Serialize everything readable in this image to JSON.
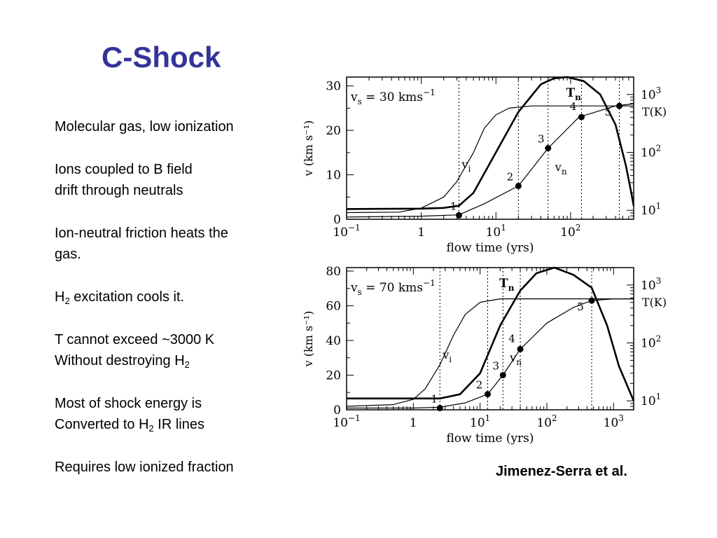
{
  "slide": {
    "title": "C-Shock",
    "bullets": [
      {
        "lines": [
          [
            "Molecular gas, low ionization"
          ]
        ]
      },
      {
        "lines": [
          [
            "Ions coupled to B field"
          ],
          [
            "drift through neutrals"
          ]
        ]
      },
      {
        "lines": [
          [
            "Ion-neutral friction heats the"
          ],
          [
            "gas."
          ]
        ]
      },
      {
        "lines": [
          [
            "H",
            {
              "sub": "2"
            },
            " excitation cools it."
          ]
        ]
      },
      {
        "lines": [
          [
            "T cannot exceed ~3000 K"
          ],
          [
            "Without destroying H",
            {
              "sub": "2"
            }
          ]
        ]
      },
      {
        "lines": [
          [
            "Most of shock energy is"
          ],
          [
            "Converted to H",
            {
              "sub": "2"
            },
            " IR lines"
          ]
        ]
      },
      {
        "lines": [
          [
            "Requires low ionized fraction"
          ]
        ]
      }
    ],
    "credit": "Jimenez-Serra et al."
  },
  "chart_data": [
    {
      "type": "line",
      "annotation": "v_s = 30 km s^-1",
      "xlabel": "flow time (yrs)",
      "ylabel": "v (km s^-1)",
      "right_label": "T(K)",
      "x_scale": "log",
      "xlim": [
        0.1,
        700
      ],
      "ylim": [
        0,
        32
      ],
      "xticks": [
        {
          "v": 0.1,
          "base": "10",
          "exp": "−1"
        },
        {
          "v": 1,
          "base": "1",
          "exp": ""
        },
        {
          "v": 10,
          "base": "10",
          "exp": "1"
        },
        {
          "v": 100,
          "base": "10",
          "exp": "2"
        }
      ],
      "yticks": [
        0,
        10,
        20,
        30
      ],
      "right_scale": "log",
      "right_lim": [
        7,
        2000
      ],
      "right_ticks": [
        {
          "v": 10,
          "base": "10",
          "exp": "1"
        },
        {
          "v": 100,
          "base": "10",
          "exp": "2"
        },
        {
          "v": 1000,
          "base": "10",
          "exp": "3"
        }
      ],
      "series": [
        {
          "name": "v_i",
          "axis": "left",
          "points": [
            [
              0.1,
              1.5
            ],
            [
              0.5,
              1.6
            ],
            [
              1,
              2.5
            ],
            [
              2,
              5
            ],
            [
              3,
              8.5
            ],
            [
              5,
              15
            ],
            [
              7,
              20.5
            ],
            [
              10,
              23.5
            ],
            [
              15,
              25
            ],
            [
              30,
              25.5
            ],
            [
              100,
              25.5
            ],
            [
              700,
              25.5
            ]
          ]
        },
        {
          "name": "v_n",
          "axis": "left",
          "points": [
            [
              0.1,
              0.5
            ],
            [
              1,
              0.7
            ],
            [
              3.2,
              1
            ],
            [
              7,
              3.5
            ],
            [
              20,
              7.5
            ],
            [
              50,
              16
            ],
            [
              130,
              23
            ],
            [
              400,
              25.5
            ],
            [
              700,
              26
            ]
          ]
        },
        {
          "name": "T_n",
          "axis": "right",
          "points": [
            [
              0.1,
              10.5
            ],
            [
              1,
              10.7
            ],
            [
              2,
              11
            ],
            [
              3.2,
              12
            ],
            [
              5,
              20
            ],
            [
              10,
              100
            ],
            [
              20,
              500
            ],
            [
              40,
              1500
            ],
            [
              60,
              1900
            ],
            [
              90,
              2000
            ],
            [
              150,
              1700
            ],
            [
              250,
              1000
            ],
            [
              400,
              300
            ],
            [
              550,
              60
            ],
            [
              650,
              20
            ],
            [
              700,
              12
            ]
          ]
        }
      ],
      "markers": [
        {
          "label": "1",
          "x": 3.2,
          "y": 0.9
        },
        {
          "label": "2",
          "x": 20,
          "y": 7.5
        },
        {
          "label": "3",
          "x": 50,
          "y": 16
        },
        {
          "label": "4",
          "x": 140,
          "y": 23
        },
        {
          "label": "5",
          "x": 450,
          "y": 25.5
        }
      ],
      "vlines": [
        3.2,
        20,
        50,
        140,
        450
      ]
    },
    {
      "type": "line",
      "annotation": "v_s = 70 km s^-1",
      "xlabel": "flow time (yrs)",
      "ylabel": "v (km s^-1)",
      "right_label": "T(K)",
      "x_scale": "log",
      "xlim": [
        0.1,
        2000
      ],
      "ylim": [
        0,
        82
      ],
      "xticks": [
        {
          "v": 0.1,
          "base": "10",
          "exp": "−1"
        },
        {
          "v": 1,
          "base": "1",
          "exp": ""
        },
        {
          "v": 10,
          "base": "10",
          "exp": "1"
        },
        {
          "v": 100,
          "base": "10",
          "exp": "2"
        },
        {
          "v": 1000,
          "base": "10",
          "exp": "3"
        }
      ],
      "yticks": [
        0,
        20,
        40,
        60,
        80
      ],
      "right_scale": "log",
      "right_lim": [
        7,
        2000
      ],
      "right_ticks": [
        {
          "v": 10,
          "base": "10",
          "exp": "1"
        },
        {
          "v": 100,
          "base": "10",
          "exp": "2"
        },
        {
          "v": 1000,
          "base": "10",
          "exp": "3"
        }
      ],
      "series": [
        {
          "name": "v_i",
          "axis": "left",
          "points": [
            [
              0.1,
              2
            ],
            [
              0.5,
              3
            ],
            [
              1,
              6
            ],
            [
              1.5,
              12
            ],
            [
              2.5,
              26
            ],
            [
              4,
              43
            ],
            [
              6,
              55
            ],
            [
              10,
              62
            ],
            [
              20,
              64
            ],
            [
              100,
              64
            ],
            [
              2000,
              64
            ]
          ]
        },
        {
          "name": "v_n",
          "axis": "left",
          "points": [
            [
              0.1,
              1
            ],
            [
              1,
              1
            ],
            [
              2.5,
              1.5
            ],
            [
              6,
              4
            ],
            [
              13,
              9
            ],
            [
              22,
              20
            ],
            [
              40,
              35
            ],
            [
              100,
              50
            ],
            [
              250,
              59
            ],
            [
              470,
              63
            ],
            [
              1000,
              64
            ],
            [
              2000,
              64
            ]
          ]
        },
        {
          "name": "T_n",
          "axis": "right",
          "points": [
            [
              0.1,
              11
            ],
            [
              1,
              11
            ],
            [
              2.5,
              11
            ],
            [
              5,
              13
            ],
            [
              10,
              30
            ],
            [
              20,
              200
            ],
            [
              40,
              800
            ],
            [
              70,
              1600
            ],
            [
              130,
              2000
            ],
            [
              250,
              1500
            ],
            [
              470,
              900
            ],
            [
              800,
              200
            ],
            [
              1200,
              40
            ],
            [
              2000,
              10
            ]
          ]
        }
      ],
      "markers": [
        {
          "label": "1",
          "x": 2.5,
          "y": 1
        },
        {
          "label": "2",
          "x": 13,
          "y": 9
        },
        {
          "label": "3",
          "x": 22,
          "y": 20
        },
        {
          "label": "4",
          "x": 40,
          "y": 35
        },
        {
          "label": "5",
          "x": 470,
          "y": 63
        }
      ],
      "vlines": [
        2.5,
        13,
        22,
        40,
        470
      ]
    }
  ]
}
